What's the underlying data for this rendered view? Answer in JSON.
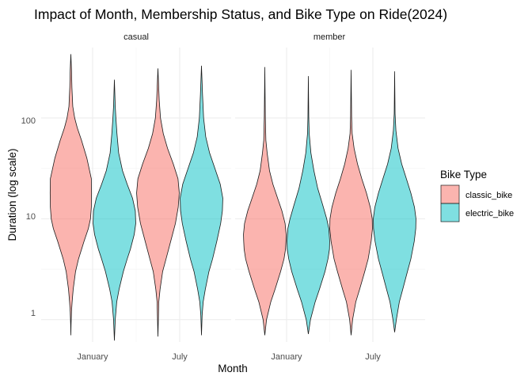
{
  "chart_data": {
    "type": "violin",
    "title": "Impact of Month, Membership Status, and Bike Type on Ride(2024)",
    "xlabel": "Month",
    "ylabel": "Duration (log scale)",
    "y_scale": "log10",
    "ylim": [
      0.6,
      500
    ],
    "y_ticks": [
      1,
      10,
      100
    ],
    "y_tick_labels": [
      "1",
      "10",
      "100"
    ],
    "categories": [
      "January",
      "July"
    ],
    "legend": {
      "title": "Bike Type",
      "placement": "right",
      "entries": [
        {
          "name": "classic_bike",
          "color": "#F8766D"
        },
        {
          "name": "electric_bike",
          "color": "#00BFC4"
        }
      ]
    },
    "grid": true,
    "facets": [
      {
        "label": "casual",
        "violins": [
          {
            "month": "January",
            "bike": "classic_bike",
            "min": 0.7,
            "max": 430,
            "profile": [
              [
                0.7,
                0
              ],
              [
                0.9,
                0.01
              ],
              [
                1.2,
                0.03
              ],
              [
                1.5,
                0.06
              ],
              [
                2,
                0.11
              ],
              [
                3,
                0.22
              ],
              [
                4,
                0.36
              ],
              [
                6,
                0.62
              ],
              [
                8,
                0.82
              ],
              [
                10,
                0.92
              ],
              [
                13,
                0.96
              ],
              [
                18,
                0.97
              ],
              [
                25,
                0.96
              ],
              [
                40,
                0.75
              ],
              [
                60,
                0.5
              ],
              [
                80,
                0.3
              ],
              [
                100,
                0.18
              ],
              [
                130,
                0.09
              ],
              [
                200,
                0.05
              ],
              [
                300,
                0.03
              ],
              [
                430,
                0
              ]
            ]
          },
          {
            "month": "January",
            "bike": "electric_bike",
            "min": 0.62,
            "max": 240,
            "profile": [
              [
                0.62,
                0
              ],
              [
                1,
                0.04
              ],
              [
                1.5,
                0.11
              ],
              [
                2,
                0.22
              ],
              [
                3,
                0.42
              ],
              [
                4,
                0.6
              ],
              [
                5,
                0.75
              ],
              [
                7,
                0.93
              ],
              [
                9,
                1.0
              ],
              [
                12,
                0.98
              ],
              [
                16,
                0.85
              ],
              [
                22,
                0.6
              ],
              [
                30,
                0.38
              ],
              [
                45,
                0.2
              ],
              [
                70,
                0.12
              ],
              [
                100,
                0.07
              ],
              [
                130,
                0.04
              ],
              [
                240,
                0
              ]
            ]
          },
          {
            "month": "July",
            "bike": "classic_bike",
            "min": 0.68,
            "max": 310,
            "profile": [
              [
                0.68,
                0
              ],
              [
                1,
                0.02
              ],
              [
                1.5,
                0.04
              ],
              [
                2,
                0.1
              ],
              [
                3,
                0.22
              ],
              [
                4,
                0.38
              ],
              [
                6,
                0.6
              ],
              [
                9,
                0.82
              ],
              [
                13,
                0.95
              ],
              [
                18,
                1.0
              ],
              [
                25,
                0.94
              ],
              [
                35,
                0.72
              ],
              [
                50,
                0.45
              ],
              [
                70,
                0.25
              ],
              [
                100,
                0.12
              ],
              [
                150,
                0.06
              ],
              [
                310,
                0
              ]
            ]
          },
          {
            "month": "July",
            "bike": "electric_bike",
            "min": 0.7,
            "max": 330,
            "profile": [
              [
                0.7,
                0
              ],
              [
                1.1,
                0.03
              ],
              [
                1.5,
                0.08
              ],
              [
                2,
                0.18
              ],
              [
                3,
                0.35
              ],
              [
                4,
                0.52
              ],
              [
                6,
                0.72
              ],
              [
                9,
                0.9
              ],
              [
                12,
                0.98
              ],
              [
                16,
                1.0
              ],
              [
                22,
                0.88
              ],
              [
                32,
                0.62
              ],
              [
                45,
                0.38
              ],
              [
                65,
                0.2
              ],
              [
                100,
                0.1
              ],
              [
                170,
                0.05
              ],
              [
                330,
                0
              ]
            ]
          }
        ]
      },
      {
        "label": "member",
        "violins": [
          {
            "month": "January",
            "bike": "classic_bike",
            "min": 0.7,
            "max": 320,
            "profile": [
              [
                0.7,
                0
              ],
              [
                1,
                0.08
              ],
              [
                1.5,
                0.28
              ],
              [
                2,
                0.48
              ],
              [
                3,
                0.74
              ],
              [
                4,
                0.9
              ],
              [
                5,
                0.97
              ],
              [
                6,
                0.99
              ],
              [
                7,
                1.0
              ],
              [
                9,
                0.95
              ],
              [
                12,
                0.8
              ],
              [
                16,
                0.6
              ],
              [
                22,
                0.38
              ],
              [
                30,
                0.22
              ],
              [
                45,
                0.11
              ],
              [
                60,
                0.05
              ],
              [
                100,
                0.025
              ],
              [
                320,
                0
              ]
            ]
          },
          {
            "month": "January",
            "bike": "electric_bike",
            "min": 0.72,
            "max": 260,
            "profile": [
              [
                0.72,
                0
              ],
              [
                1,
                0.1
              ],
              [
                1.5,
                0.32
              ],
              [
                2,
                0.52
              ],
              [
                3,
                0.78
              ],
              [
                4,
                0.92
              ],
              [
                5,
                0.99
              ],
              [
                6,
                1.0
              ],
              [
                8,
                0.96
              ],
              [
                10,
                0.86
              ],
              [
                14,
                0.66
              ],
              [
                20,
                0.44
              ],
              [
                30,
                0.26
              ],
              [
                45,
                0.12
              ],
              [
                70,
                0.04
              ],
              [
                100,
                0.02
              ],
              [
                260,
                0
              ]
            ]
          },
          {
            "month": "July",
            "bike": "classic_bike",
            "min": 0.7,
            "max": 300,
            "profile": [
              [
                0.7,
                0
              ],
              [
                1,
                0.07
              ],
              [
                1.5,
                0.22
              ],
              [
                2,
                0.4
              ],
              [
                3,
                0.64
              ],
              [
                4,
                0.8
              ],
              [
                6,
                0.94
              ],
              [
                8,
                1.0
              ],
              [
                10,
                0.99
              ],
              [
                13,
                0.9
              ],
              [
                18,
                0.72
              ],
              [
                25,
                0.5
              ],
              [
                35,
                0.3
              ],
              [
                50,
                0.14
              ],
              [
                70,
                0.05
              ],
              [
                100,
                0.025
              ],
              [
                300,
                0
              ]
            ]
          },
          {
            "month": "July",
            "bike": "electric_bike",
            "min": 0.75,
            "max": 290,
            "profile": [
              [
                0.75,
                0
              ],
              [
                1,
                0.08
              ],
              [
                1.5,
                0.22
              ],
              [
                2,
                0.38
              ],
              [
                3,
                0.6
              ],
              [
                4,
                0.76
              ],
              [
                6,
                0.92
              ],
              [
                8,
                0.99
              ],
              [
                10,
                1.0
              ],
              [
                13,
                0.93
              ],
              [
                18,
                0.76
              ],
              [
                25,
                0.55
              ],
              [
                35,
                0.33
              ],
              [
                50,
                0.16
              ],
              [
                75,
                0.06
              ],
              [
                110,
                0.02
              ],
              [
                290,
                0
              ]
            ]
          }
        ]
      }
    ]
  }
}
